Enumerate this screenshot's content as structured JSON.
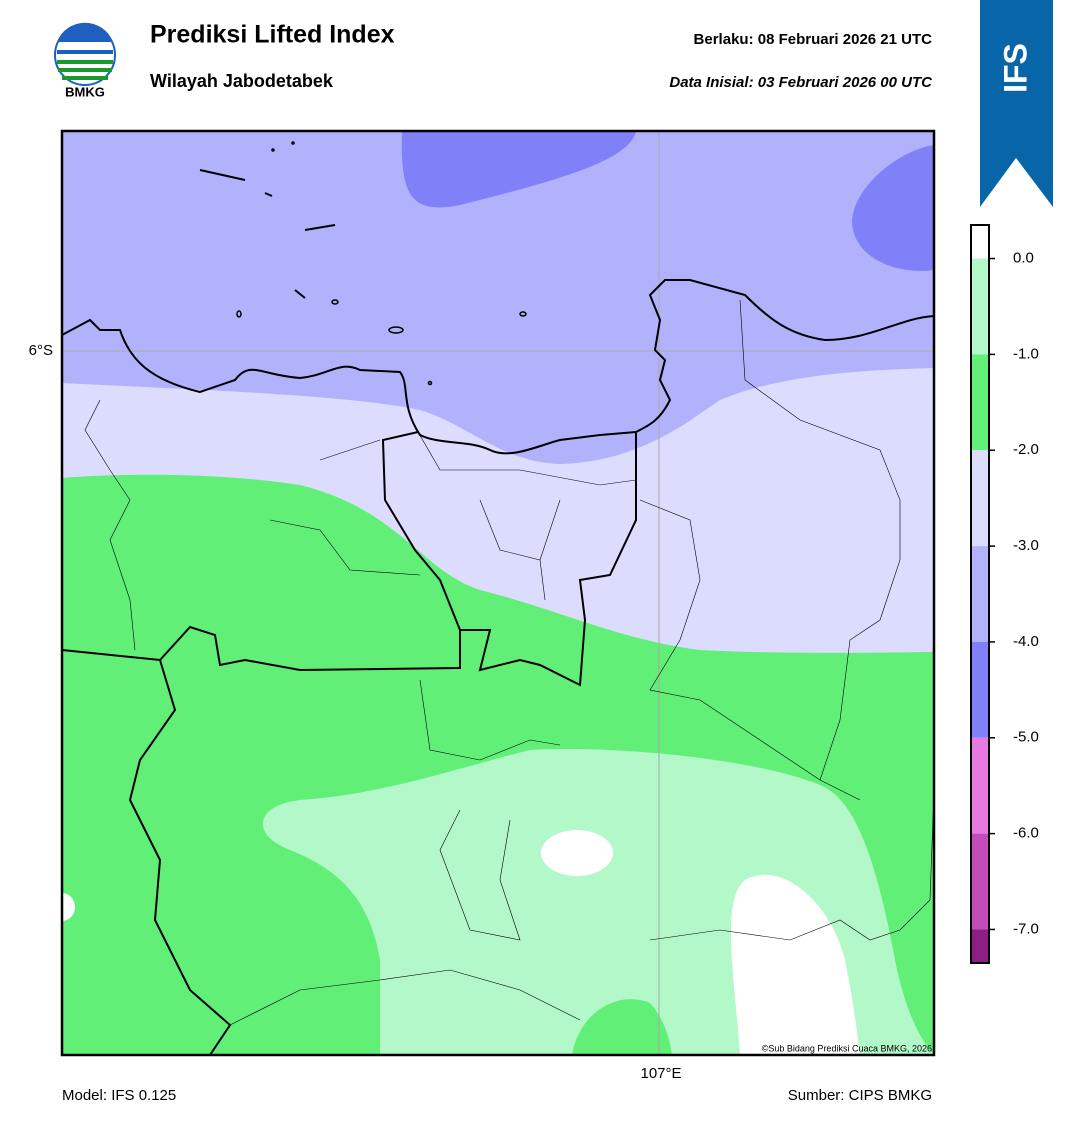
{
  "header": {
    "title": "Prediksi Lifted Index",
    "subtitle": "Wilayah Jabodetabek",
    "valid": "Berlaku:  08 Februari 2026 21 UTC",
    "init": "Data Inisial:  03 Februari 2026 00 UTC"
  },
  "logo": "BMKG",
  "badge": "IFS",
  "map": {
    "lat_label": "6°S",
    "lon_label": "107°E",
    "credit": "©Sub Bidang Prediksi Cuaca BMKG, 2026"
  },
  "colorbar": {
    "lim": [
      -7.35,
      0.35
    ],
    "boundaries": [
      0.35,
      0,
      -1,
      -2,
      -3,
      -4,
      -5,
      -6,
      -7,
      -7.35
    ],
    "colors": [
      "#ffffff",
      "#b3f8c8",
      "#62ef78",
      "#dcdcfe",
      "#b2b2fc",
      "#8080f9",
      "#e67ae0",
      "#c24cb9",
      "#8b1f86"
    ],
    "ticks": [
      {
        "value": 0,
        "label": "0.0"
      },
      {
        "value": -1,
        "label": "-1.0"
      },
      {
        "value": -2,
        "label": "-2.0"
      },
      {
        "value": -3,
        "label": "-3.0"
      },
      {
        "value": -4,
        "label": "-4.0"
      },
      {
        "value": -5,
        "label": "-5.0"
      },
      {
        "value": -6,
        "label": "-6.0"
      },
      {
        "value": -7,
        "label": "-7.0"
      }
    ]
  },
  "footer": {
    "model": "Model: IFS 0.125",
    "source": "Sumber: CIPS BMKG"
  }
}
